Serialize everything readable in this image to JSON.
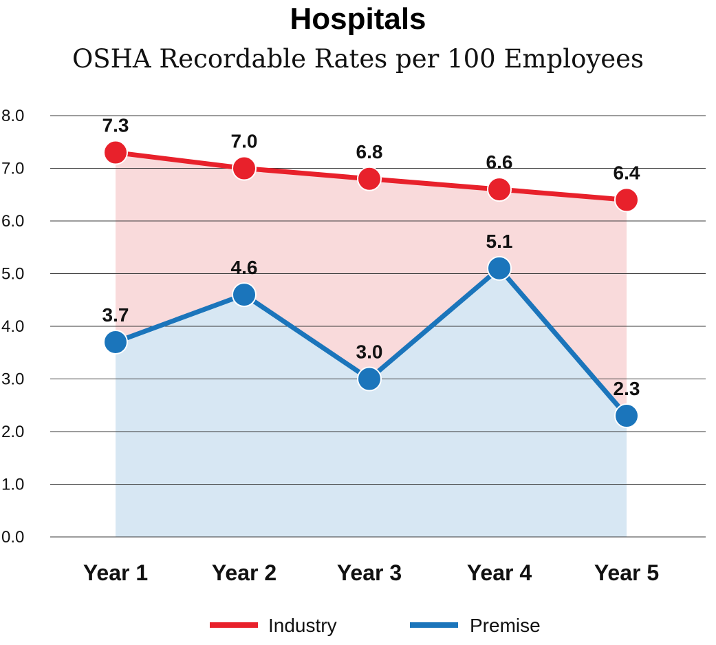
{
  "chart_data": {
    "type": "line",
    "title": "Hospitals",
    "subtitle": "OSHA Recordable Rates per 100 Employees",
    "categories": [
      "Year 1",
      "Year 2",
      "Year 3",
      "Year 4",
      "Year 5"
    ],
    "series": [
      {
        "name": "Industry",
        "values": [
          7.3,
          7.0,
          6.8,
          6.6,
          6.4
        ],
        "color": "#e8212b",
        "fill": "#f9dadb"
      },
      {
        "name": "Premise",
        "values": [
          3.7,
          4.6,
          3.0,
          5.1,
          2.3
        ],
        "color": "#1b75bb",
        "fill": "#d7e7f3"
      }
    ],
    "y_ticks": [
      "0.0",
      "1.0",
      "2.0",
      "3.0",
      "4.0",
      "5.0",
      "6.0",
      "7.0",
      "8.0"
    ],
    "ylim": [
      0,
      8
    ],
    "grid": true,
    "legend": "bottom",
    "area_fill": true
  }
}
